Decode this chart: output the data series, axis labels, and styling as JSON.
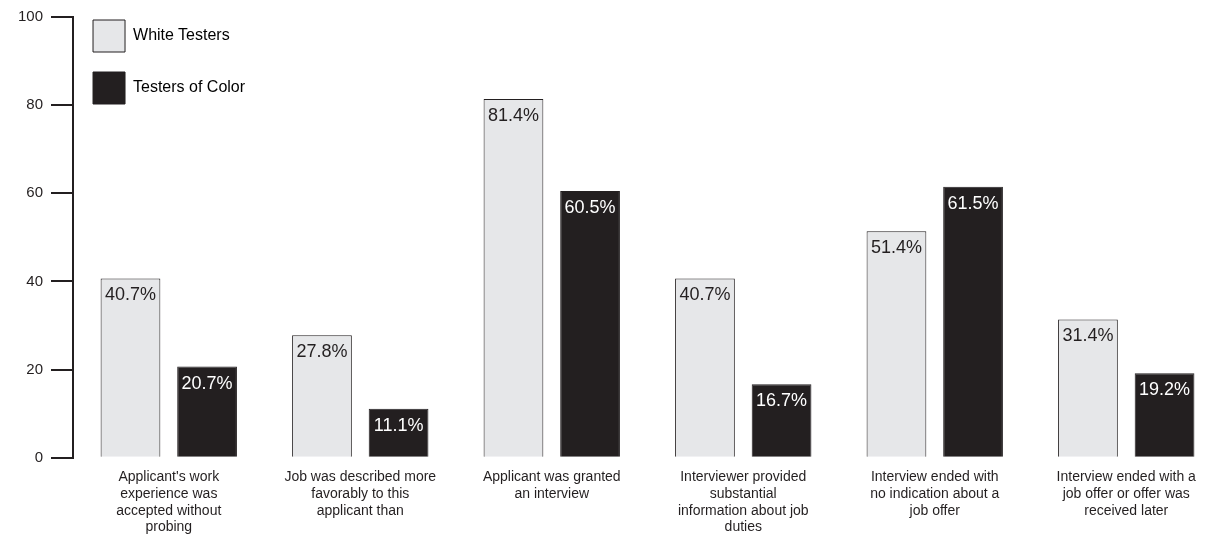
{
  "chart_data": {
    "type": "bar",
    "categories": [
      "Applicant's work experience was accepted without probing",
      "Job was described more favorably to this applicant than",
      "Applicant was granted an interview",
      "Interviewer provided substantial information about job duties",
      "Interview ended with no indication about a job offer",
      "Interview ended with a job offer or offer was received later"
    ],
    "series": [
      {
        "name": "White Testers",
        "color": "#e6e7e9",
        "values": [
          40.7,
          27.8,
          81.4,
          40.7,
          51.4,
          31.4
        ],
        "value_labels": [
          "40.7%",
          "27.8%",
          "81.4%",
          "40.7%",
          "51.4%",
          "31.4%"
        ]
      },
      {
        "name": "Testers of Color",
        "color": "#231f20",
        "values": [
          20.7,
          11.1,
          60.5,
          16.7,
          61.5,
          19.2
        ],
        "value_labels": [
          "20.7%",
          "11.1%",
          "60.5%",
          "16.7%",
          "61.5%",
          "19.2%"
        ]
      }
    ],
    "ylim": [
      0,
      100
    ],
    "yticks": [
      0,
      20,
      40,
      60,
      80,
      100
    ],
    "grid": false,
    "legend": "top left"
  }
}
